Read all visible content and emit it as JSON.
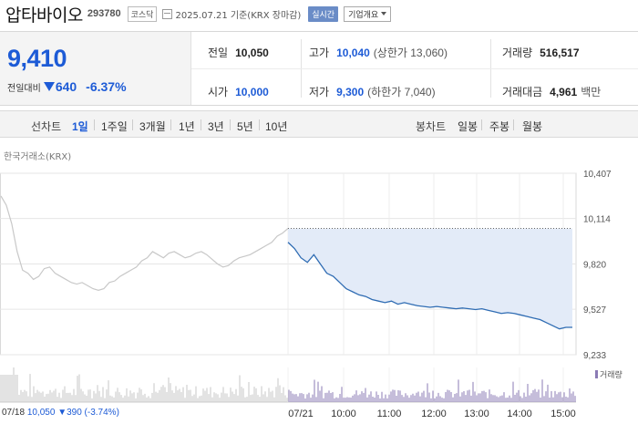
{
  "header": {
    "name": "압타바이오",
    "code": "293780",
    "market": "코스닥",
    "date": "2025.07.21  기준(KRX 장마감)",
    "realtime_label": "실시간",
    "company_label": "기업개요"
  },
  "quote": {
    "price": "9,410",
    "change_label": "전일대비",
    "change_amount": "640",
    "change_percent": "-6.37%",
    "direction": "down",
    "stats": {
      "prev_close": {
        "label": "전일",
        "value": "10,050"
      },
      "high": {
        "label": "고가",
        "value": "10,040",
        "sub": "(상한가 13,060)"
      },
      "volume": {
        "label": "거래량",
        "value": "516,517"
      },
      "open": {
        "label": "시가",
        "value": "10,000"
      },
      "low": {
        "label": "저가",
        "value": "9,300",
        "sub": "(하한가 7,040)"
      },
      "trade_value": {
        "label": "거래대금",
        "value": "4,961",
        "unit": "백만"
      }
    }
  },
  "period_bar": {
    "line_label": "선차트",
    "line_options": [
      "1일",
      "1주일",
      "3개월",
      "1년",
      "3년",
      "5년",
      "10년"
    ],
    "line_active": "1일",
    "candle_label": "봉차트",
    "candle_options": [
      "일봉",
      "주봉",
      "월봉"
    ]
  },
  "chart_data": {
    "type": "line",
    "title": "한국거래소(KRX)",
    "y_ticks": [
      "10,407",
      "10,114",
      "9,820",
      "9,527",
      "9,233"
    ],
    "ylim": [
      9233,
      10407
    ],
    "reference_line": 10050,
    "x_ticks": [
      "07/18",
      "07/21",
      "10:00",
      "11:00",
      "12:00",
      "13:00",
      "14:00",
      "15:00"
    ],
    "series": [
      {
        "session": "07/18",
        "values": [
          10260,
          10200,
          10080,
          9900,
          9780,
          9760,
          9720,
          9740,
          9790,
          9800,
          9760,
          9740,
          9720,
          9700,
          9690,
          9700,
          9680,
          9660,
          9650,
          9660,
          9700,
          9710,
          9740,
          9760,
          9780,
          9800,
          9840,
          9860,
          9900,
          9880,
          9860,
          9890,
          9900,
          9880,
          9860,
          9870,
          9890,
          9900,
          9880,
          9850,
          9820,
          9800,
          9810,
          9840,
          9860,
          9870,
          9880,
          9900,
          9920,
          9940,
          9960,
          10000,
          10020,
          10050
        ]
      },
      {
        "session": "07/21",
        "values": [
          9960,
          9920,
          9860,
          9830,
          9880,
          9820,
          9760,
          9740,
          9700,
          9660,
          9640,
          9620,
          9610,
          9590,
          9580,
          9570,
          9580,
          9560,
          9570,
          9560,
          9550,
          9545,
          9540,
          9545,
          9540,
          9535,
          9530,
          9535,
          9530,
          9525,
          9530,
          9520,
          9510,
          9500,
          9505,
          9500,
          9490,
          9480,
          9470,
          9460,
          9440,
          9420,
          9400,
          9410,
          9410
        ]
      }
    ],
    "volume_legend": "거래량"
  },
  "footer": {
    "prev_date": "07/18",
    "prev_close": "10,050",
    "prev_change": "▼390 (-3.74%)"
  },
  "colors": {
    "down": "#1d5bd6",
    "line": "#2f6cb3",
    "fill": "#e3ebf8",
    "volume": "#8b7bb5"
  }
}
